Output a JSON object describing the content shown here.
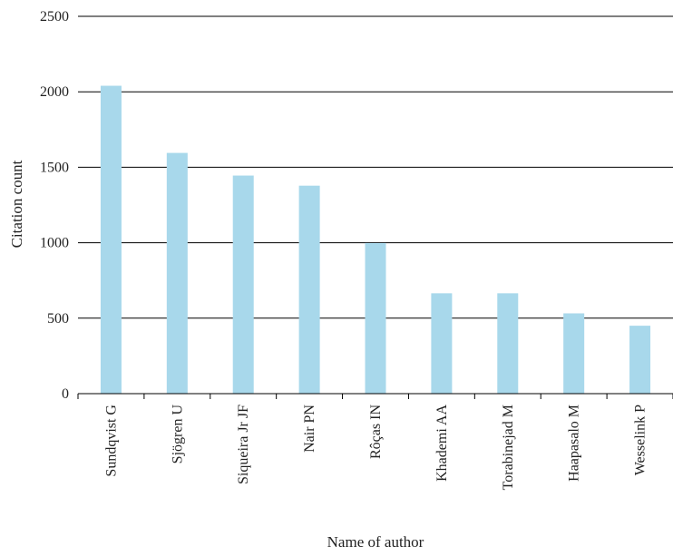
{
  "chart_data": {
    "type": "bar",
    "title": "",
    "xlabel": "Name of author",
    "ylabel": "Citation count",
    "categories": [
      "Sundqvist G",
      "Sjögren U",
      "Siqueira Jr JF",
      "Nair PN",
      "Rôças IN",
      "Khademi AA",
      "Torabinejad M",
      "Haapasalo M",
      "Wesselink P"
    ],
    "values": [
      2040,
      1595,
      1445,
      1378,
      998,
      665,
      665,
      532,
      450
    ],
    "ylim": [
      0,
      2500
    ],
    "yticks": [
      "0",
      "500",
      "1000",
      "1500",
      "2000",
      "2500"
    ],
    "grid": "horizontal",
    "legend": "none",
    "colors": {
      "bar": "#a8d8eb",
      "grid": "#000000",
      "axis": "#000000"
    }
  }
}
